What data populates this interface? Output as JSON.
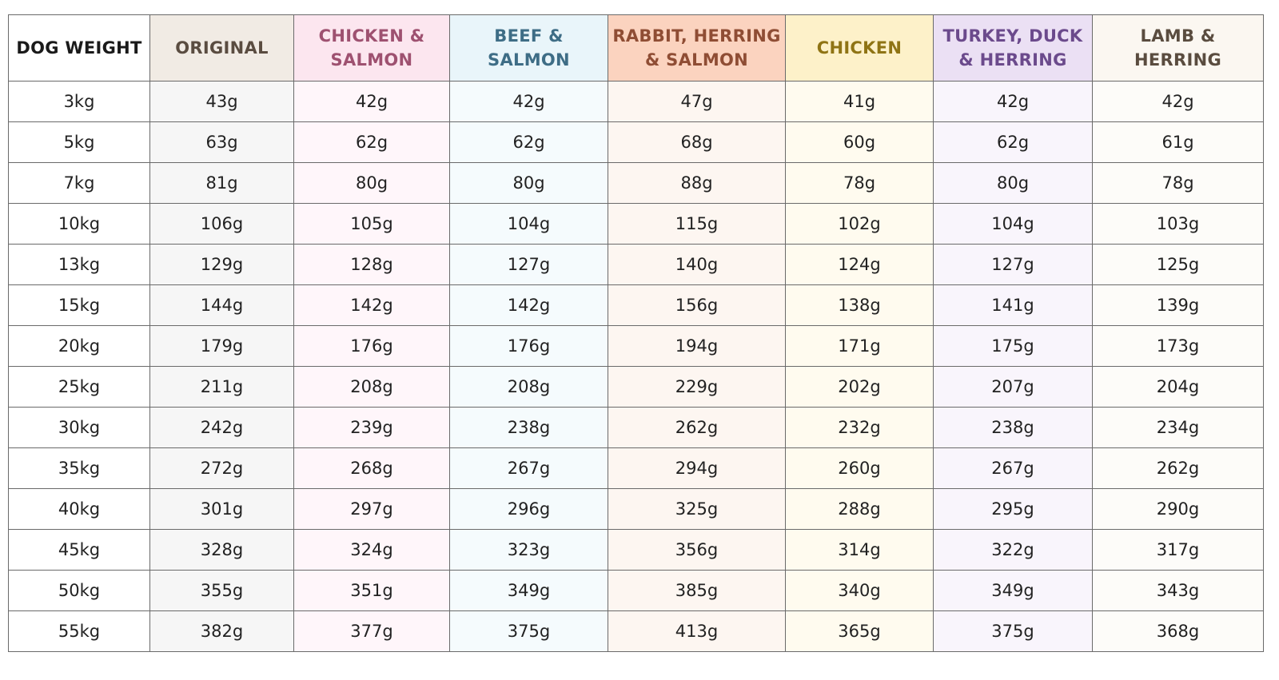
{
  "chart_data": {
    "type": "table",
    "columns": [
      {
        "label": "DOG WEIGHT",
        "header_bg": "#ffffff",
        "header_fg": "#1a1a1a",
        "cell_bg": "#ffffff"
      },
      {
        "label": "ORIGINAL",
        "header_bg": "#f1ebe4",
        "header_fg": "#5a4c40",
        "cell_bg": "#f6f6f6"
      },
      {
        "label": "CHICKEN &\nSALMON",
        "header_bg": "#fce6ef",
        "header_fg": "#9e5170",
        "cell_bg": "#fff6fa"
      },
      {
        "label": "BEEF &\nSALMON",
        "header_bg": "#e9f5fa",
        "header_fg": "#3e6d86",
        "cell_bg": "#f5fbfd"
      },
      {
        "label": "RABBIT, HERRING\n& SALMON",
        "header_bg": "#fbd3bf",
        "header_fg": "#8f4d34",
        "cell_bg": "#fdf6f1"
      },
      {
        "label": "CHICKEN",
        "header_bg": "#fdf1c9",
        "header_fg": "#8f7414",
        "cell_bg": "#fffbef"
      },
      {
        "label": "TURKEY, DUCK\n& HERRING",
        "header_bg": "#ebe0f4",
        "header_fg": "#6b4a8c",
        "cell_bg": "#f9f5fc"
      },
      {
        "label": "LAMB &\nHERRING",
        "header_bg": "#fbf7f1",
        "header_fg": "#5a4c3f",
        "cell_bg": "#fdfcf9"
      }
    ],
    "rows": [
      [
        "3kg",
        "43g",
        "42g",
        "42g",
        "47g",
        "41g",
        "42g",
        "42g"
      ],
      [
        "5kg",
        "63g",
        "62g",
        "62g",
        "68g",
        "60g",
        "62g",
        "61g"
      ],
      [
        "7kg",
        "81g",
        "80g",
        "80g",
        "88g",
        "78g",
        "80g",
        "78g"
      ],
      [
        "10kg",
        "106g",
        "105g",
        "104g",
        "115g",
        "102g",
        "104g",
        "103g"
      ],
      [
        "13kg",
        "129g",
        "128g",
        "127g",
        "140g",
        "124g",
        "127g",
        "125g"
      ],
      [
        "15kg",
        "144g",
        "142g",
        "142g",
        "156g",
        "138g",
        "141g",
        "139g"
      ],
      [
        "20kg",
        "179g",
        "176g",
        "176g",
        "194g",
        "171g",
        "175g",
        "173g"
      ],
      [
        "25kg",
        "211g",
        "208g",
        "208g",
        "229g",
        "202g",
        "207g",
        "204g"
      ],
      [
        "30kg",
        "242g",
        "239g",
        "238g",
        "262g",
        "232g",
        "238g",
        "234g"
      ],
      [
        "35kg",
        "272g",
        "268g",
        "267g",
        "294g",
        "260g",
        "267g",
        "262g"
      ],
      [
        "40kg",
        "301g",
        "297g",
        "296g",
        "325g",
        "288g",
        "295g",
        "290g"
      ],
      [
        "45kg",
        "328g",
        "324g",
        "323g",
        "356g",
        "314g",
        "322g",
        "317g"
      ],
      [
        "50kg",
        "355g",
        "351g",
        "349g",
        "385g",
        "340g",
        "349g",
        "343g"
      ],
      [
        "55kg",
        "382g",
        "377g",
        "375g",
        "413g",
        "365g",
        "375g",
        "368g"
      ]
    ]
  }
}
